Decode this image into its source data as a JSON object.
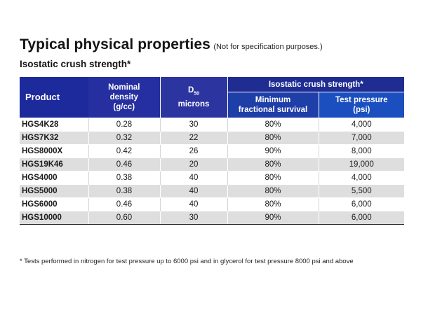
{
  "title": "Typical physical properties",
  "title_note": "(Not for specification purposes.)",
  "subtitle": "Isostatic crush strength*",
  "table": {
    "headers": {
      "product": "Product",
      "density_line1": "Nominal",
      "density_line2": "density",
      "density_line3": "(g/cc)",
      "d50_letter": "D",
      "d50_sub": "50",
      "d50_line2": "microns",
      "group": "Isostatic crush strength*",
      "survival_line1": "Minimum",
      "survival_line2": "fractional survival",
      "pressure_line1": "Test pressure",
      "pressure_line2": "(psi)"
    },
    "rows": [
      {
        "product": "HGS4K28",
        "density": "0.28",
        "d50": "30",
        "survival": "80%",
        "pressure": "4,000"
      },
      {
        "product": "HGS7K32",
        "density": "0.32",
        "d50": "22",
        "survival": "80%",
        "pressure": "7,000"
      },
      {
        "product": "HGS8000X",
        "density": "0.42",
        "d50": "26",
        "survival": "90%",
        "pressure": "8,000"
      },
      {
        "product": "HGS19K46",
        "density": "0.46",
        "d50": "20",
        "survival": "80%",
        "pressure": "19,000"
      },
      {
        "product": "HGS4000",
        "density": "0.38",
        "d50": "40",
        "survival": "80%",
        "pressure": "4,000"
      },
      {
        "product": "HGS5000",
        "density": "0.38",
        "d50": "40",
        "survival": "80%",
        "pressure": "5,500"
      },
      {
        "product": "HGS6000",
        "density": "0.46",
        "d50": "40",
        "survival": "80%",
        "pressure": "6,000"
      },
      {
        "product": "HGS10000",
        "density": "0.60",
        "d50": "30",
        "survival": "90%",
        "pressure": "6,000"
      }
    ]
  },
  "footnote": "* Tests performed in nitrogen for test pressure up to 6000 psi and in glycerol for test pressure 8000 psi and above",
  "colors": {
    "header_dark_blue": "#1d2a9c",
    "header_bright_blue": "#1b4fbf",
    "row_stripe": "#dedede"
  }
}
